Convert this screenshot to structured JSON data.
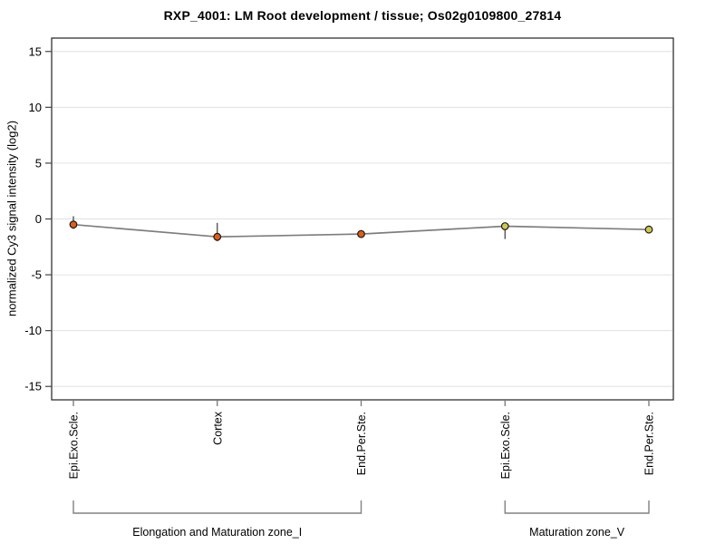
{
  "page": {
    "background": "#ffffff"
  },
  "chart_data": {
    "type": "line",
    "title": "RXP_4001: LM Root development / tissue; Os02g0109800_27814",
    "ylabel": "normalized Cy3 signal intensity (log2)",
    "xlabel": "",
    "ylim": [
      -16.2,
      16.2
    ],
    "yticks": [
      -15,
      -10,
      -5,
      0,
      5,
      10,
      15
    ],
    "grid": true,
    "legend": "none",
    "categories": [
      "Epi.Exo.Scle.",
      "Cortex",
      "End.Per.Ste.",
      "Epi.Exo.Scle.",
      "End.Per.Ste."
    ],
    "series": [
      {
        "name": "normalized Cy3 signal intensity",
        "values": [
          -0.5,
          -1.6,
          -1.35,
          -0.65,
          -0.95
        ],
        "err_hi": [
          0.25,
          -0.35,
          -1.0,
          -0.4,
          -0.6
        ],
        "err_lo": [
          -0.9,
          -2.0,
          -1.7,
          -1.8,
          -1.3
        ],
        "point_colors": [
          "#de5d16",
          "#de5d16",
          "#de5d16",
          "#cfc850",
          "#cfc850"
        ]
      }
    ],
    "groups": [
      {
        "label": "Elongation and Maturation zone_I",
        "from": 0,
        "to": 2
      },
      {
        "label": "Maturation zone_V",
        "from": 3,
        "to": 4
      }
    ],
    "colors": {
      "line": "#7d7d7d",
      "marker_edge": "#1a1a1a",
      "error_bar": "#3a3a3a",
      "grid": "#e0e0e0",
      "frame": "#222222",
      "axis_tick": "#444444",
      "x_tick": "#777777",
      "bracket": "#808080",
      "text": "#000000"
    }
  }
}
